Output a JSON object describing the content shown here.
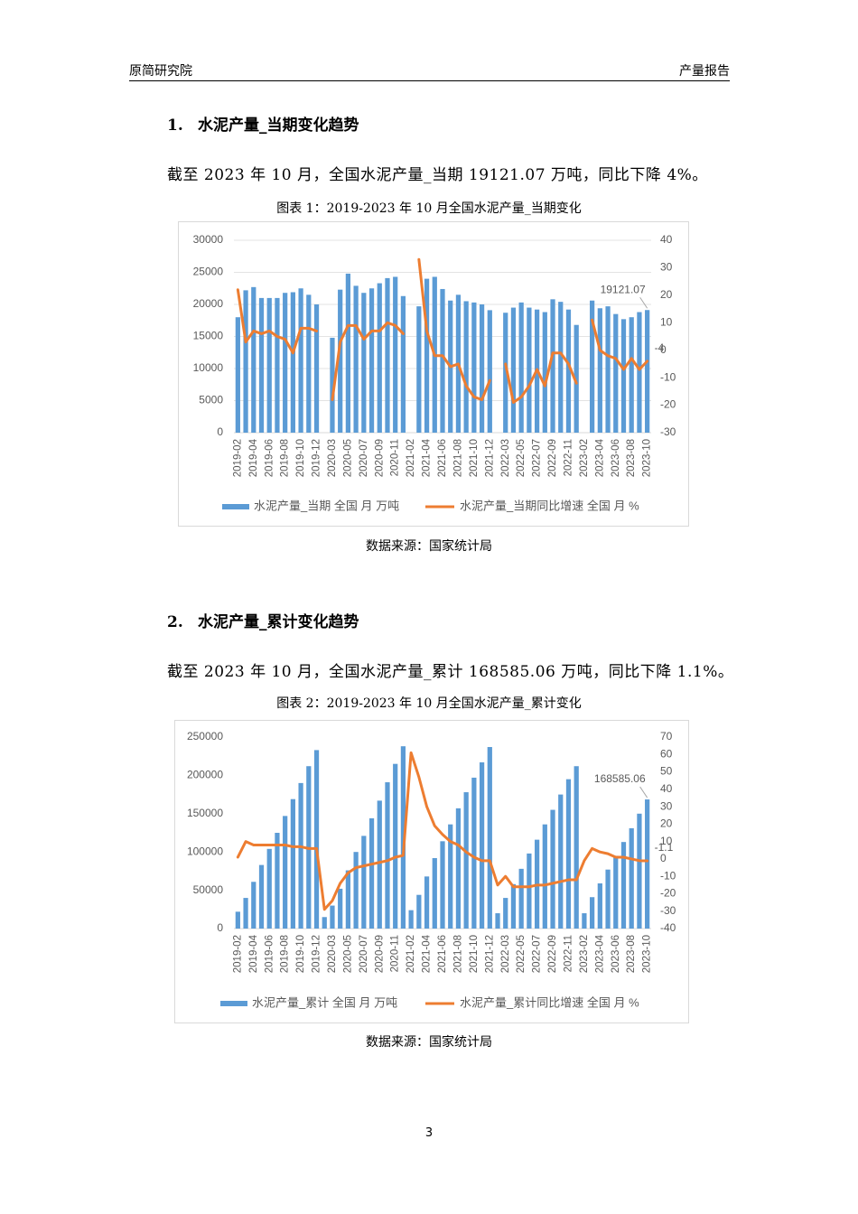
{
  "header": {
    "left": "原简研究院",
    "right": "产量报告"
  },
  "sections": [
    {
      "number": "1.",
      "title": "水泥产量_当期变化趋势",
      "paragraph": "截至 2023 年 10 月，全国水泥产量_当期 19121.07 万吨，同比下降 4%。",
      "caption": "图表 1：2019-2023 年 10 月全国水泥产量_当期变化",
      "source": "数据来源：国家统计局"
    },
    {
      "number": "2.",
      "title": "水泥产量_累计变化趋势",
      "paragraph": "截至 2023 年 10 月，全国水泥产量_累计 168585.06 万吨，同比下降 1.1%。",
      "caption": "图表 2：2019-2023 年 10 月全国水泥产量_累计变化",
      "source": "数据来源：国家统计局"
    }
  ],
  "page_number": "3",
  "chart_data": [
    {
      "type": "combo",
      "grid": true,
      "legend": "bottom",
      "categories": [
        "2019-02",
        null,
        "2019-04",
        null,
        "2019-06",
        null,
        "2019-08",
        null,
        "2019-10",
        null,
        "2019-12",
        null,
        "2020-03",
        null,
        "2020-05",
        null,
        "2020-07",
        null,
        "2020-09",
        null,
        "2020-11",
        null,
        "2021-02",
        null,
        "2021-04",
        null,
        "2021-06",
        null,
        "2021-08",
        null,
        "2021-10",
        null,
        "2021-12",
        null,
        "2022-03",
        null,
        "2022-05",
        null,
        "2022-07",
        null,
        "2022-09",
        null,
        "2022-11",
        null,
        "2023-02",
        null,
        "2023-04",
        null,
        "2023-06",
        null,
        "2023-08",
        null,
        "2023-10"
      ],
      "ylim": [
        0,
        30000
      ],
      "yticks": [
        0,
        5000,
        10000,
        15000,
        20000,
        25000,
        30000
      ],
      "y2lim": [
        -30,
        40
      ],
      "y2ticks": [
        -30,
        -20,
        -10,
        0,
        10,
        20,
        30,
        40
      ],
      "series": [
        {
          "name": "水泥产量_当期 全国 月 万吨",
          "type": "bar",
          "color": "#5b9bd5",
          "values": [
            18000,
            22200,
            22700,
            21000,
            21000,
            21000,
            21800,
            21900,
            22500,
            21500,
            20000,
            null,
            14800,
            22300,
            24800,
            22900,
            21800,
            22500,
            23300,
            24100,
            24300,
            21300,
            null,
            19700,
            24000,
            24300,
            22400,
            20600,
            21500,
            20500,
            20300,
            20000,
            19100,
            null,
            18700,
            19500,
            20300,
            19500,
            19200,
            18800,
            20800,
            20400,
            19200,
            16800,
            null,
            20600,
            19400,
            19700,
            18500,
            17700,
            18000,
            18800,
            19121.07
          ]
        },
        {
          "name": "水泥产量_当期同比增速 全国 月 %",
          "type": "line",
          "axis": "y2",
          "color": "#ed7d31",
          "values": [
            22,
            3,
            7,
            6,
            7,
            5,
            4,
            -1,
            8,
            8,
            7,
            null,
            -18,
            3,
            9,
            9,
            4,
            7,
            7,
            10,
            9,
            6,
            null,
            33,
            7,
            -2,
            -2,
            -6,
            -5,
            -13,
            -17,
            -18,
            -11,
            null,
            -5,
            -19,
            -17,
            -13,
            -7,
            -13,
            -1,
            -1,
            -5,
            -12,
            null,
            11,
            0,
            -2,
            -3,
            -7,
            -3,
            -7,
            -4
          ]
        }
      ]
    },
    {
      "type": "combo",
      "grid": false,
      "legend": "bottom",
      "categories": [
        "2019-02",
        null,
        "2019-04",
        null,
        "2019-06",
        null,
        "2019-08",
        null,
        "2019-10",
        null,
        "2019-12",
        null,
        "2020-03",
        null,
        "2020-05",
        null,
        "2020-07",
        null,
        "2020-09",
        null,
        "2020-11",
        null,
        "2021-02",
        null,
        "2021-04",
        null,
        "2021-06",
        null,
        "2021-08",
        null,
        "2021-10",
        null,
        "2021-12",
        null,
        "2022-03",
        null,
        "2022-05",
        null,
        "2022-07",
        null,
        "2022-09",
        null,
        "2022-11",
        null,
        "2023-02",
        null,
        "2023-04",
        null,
        "2023-06",
        null,
        "2023-08",
        null,
        "2023-10"
      ],
      "ylim": [
        0,
        250000
      ],
      "yticks": [
        0,
        50000,
        100000,
        150000,
        200000,
        250000
      ],
      "y2lim": [
        -40,
        70
      ],
      "y2ticks": [
        -40,
        -30,
        -20,
        -10,
        0,
        10,
        20,
        30,
        40,
        50,
        60,
        70
      ],
      "series": [
        {
          "name": "水泥产量_累计 全国 月 万吨",
          "type": "bar",
          "color": "#5b9bd5",
          "values": [
            22000,
            40000,
            61000,
            83000,
            104000,
            125000,
            147000,
            169000,
            190000,
            212000,
            233000,
            15000,
            30000,
            52000,
            76000,
            100000,
            121000,
            144000,
            167000,
            191000,
            215000,
            238000,
            24000,
            44000,
            68000,
            92000,
            114000,
            136000,
            157000,
            178000,
            197000,
            217000,
            237000,
            20000,
            40000,
            58000,
            78000,
            98000,
            116000,
            136000,
            155000,
            175000,
            195000,
            212000,
            20000,
            41000,
            59000,
            77000,
            95000,
            113000,
            131000,
            150000,
            168585.06
          ]
        },
        {
          "name": "水泥产量_累计同比增速 全国 月 %",
          "type": "line",
          "axis": "y2",
          "color": "#ed7d31",
          "values": [
            1,
            10,
            8,
            8,
            8,
            8,
            8,
            7,
            7,
            6,
            6,
            -29,
            -24,
            -14,
            -8,
            -5,
            -4,
            -3,
            -2,
            -1,
            1,
            2,
            61,
            47,
            30,
            19,
            14,
            10,
            8,
            4,
            1,
            -1,
            -1,
            -15,
            -10,
            -16,
            -16,
            -16,
            -15,
            -15,
            -14,
            -13,
            -12,
            -12,
            -1,
            6,
            4,
            3,
            1,
            1,
            0,
            -1,
            -1.1
          ]
        }
      ]
    }
  ]
}
